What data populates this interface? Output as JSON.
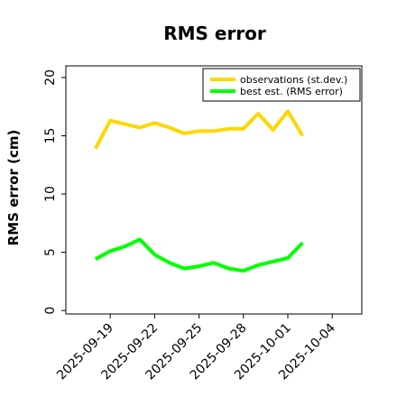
{
  "chart_data": {
    "type": "line",
    "title": "RMS error",
    "ylabel": "RMS error (cm)",
    "xlabel": "",
    "ylim": [
      -0.3,
      21
    ],
    "yticks": [
      0,
      5,
      10,
      15,
      20
    ],
    "xlim": [
      "2025-09-16",
      "2025-10-06"
    ],
    "xtick_labels": [
      "2025-09-19",
      "2025-09-22",
      "2025-09-25",
      "2025-09-28",
      "2025-10-01",
      "2025-10-04"
    ],
    "highlighted_xtick": "2025-09-25",
    "highlight_color": "#228b22",
    "grid": false,
    "legend_position": "top-right",
    "x": [
      "2025-09-18",
      "2025-09-19",
      "2025-09-20",
      "2025-09-21",
      "2025-09-22",
      "2025-09-23",
      "2025-09-24",
      "2025-09-25",
      "2025-09-26",
      "2025-09-27",
      "2025-09-28",
      "2025-09-29",
      "2025-09-30",
      "2025-10-01",
      "2025-10-02"
    ],
    "series": [
      {
        "name": "observations (st.dev.)",
        "color": "#ffd700",
        "values": [
          13.9,
          16.3,
          16.0,
          15.7,
          16.1,
          15.7,
          15.2,
          15.4,
          15.4,
          15.6,
          15.6,
          16.9,
          15.5,
          17.1,
          15.0
        ]
      },
      {
        "name": "best est. (RMS error)",
        "color": "#00ff00",
        "values": [
          4.4,
          5.1,
          5.5,
          6.1,
          4.8,
          4.1,
          3.6,
          3.8,
          4.1,
          3.6,
          3.4,
          3.9,
          4.2,
          4.5,
          5.8
        ]
      }
    ]
  }
}
